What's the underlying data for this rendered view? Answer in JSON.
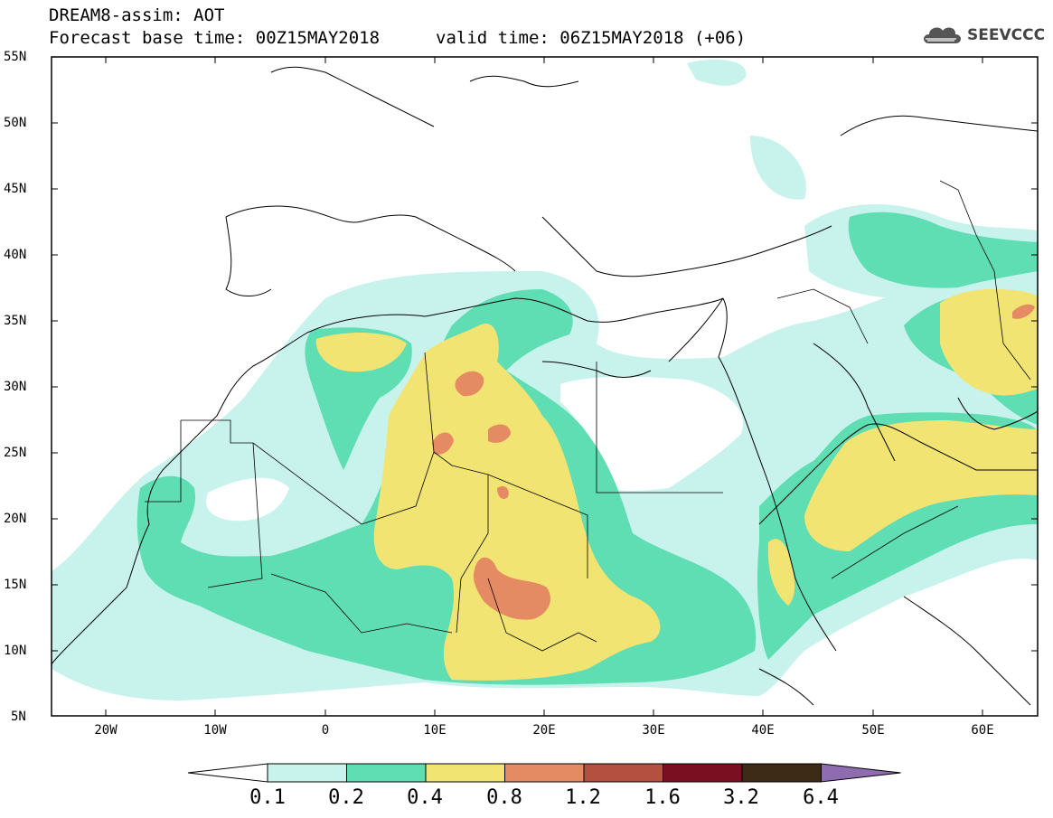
{
  "header": {
    "line1": "DREAM8-assim: AOT",
    "line2": "Forecast base time: 00Z15MAY2018",
    "valid": "valid time: 06Z15MAY2018 (+06)"
  },
  "logo": {
    "text": "SEEVCCC",
    "icon": "cloud-icon"
  },
  "axes": {
    "lat_labels": [
      "55N",
      "50N",
      "45N",
      "40N",
      "35N",
      "30N",
      "25N",
      "20N",
      "15N",
      "10N",
      "5N"
    ],
    "lon_labels": [
      "20W",
      "10W",
      "0",
      "10E",
      "20E",
      "30E",
      "40E",
      "50E",
      "60E"
    ]
  },
  "colorbar": {
    "labels": [
      "0.1",
      "0.2",
      "0.4",
      "0.8",
      "1.2",
      "1.6",
      "3.2",
      "6.4"
    ],
    "colors": [
      "#ffffff",
      "#c8f2ec",
      "#5fddb3",
      "#f2e473",
      "#e58b64",
      "#b45040",
      "#7b0f22",
      "#3d2a17",
      "#8f6bb0"
    ]
  },
  "legend_colors": {
    "c1": "#c8f2ec",
    "c2": "#5fddb3",
    "c3": "#f2e473",
    "c4": "#e58b64",
    "c5": "#b45040"
  }
}
